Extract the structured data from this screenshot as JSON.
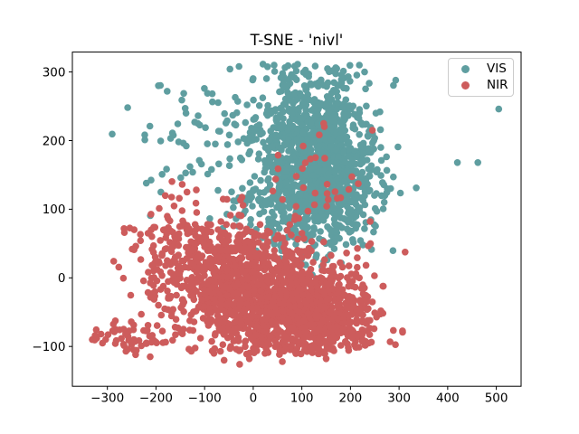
{
  "chart_data": {
    "type": "scatter",
    "title": "T-SNE - 'nivl'",
    "xlabel": "",
    "ylabel": "",
    "xlim": [
      -372,
      551
    ],
    "ylim": [
      -158,
      329
    ],
    "xticks": [
      -300,
      -200,
      -100,
      0,
      100,
      200,
      300,
      400,
      500
    ],
    "xtick_labels": [
      "−300",
      "−200",
      "−100",
      "0",
      "100",
      "200",
      "300",
      "400",
      "500"
    ],
    "yticks": [
      -100,
      0,
      100,
      200,
      300
    ],
    "ytick_labels": [
      "−100",
      "0",
      "100",
      "200",
      "300"
    ],
    "grid": false,
    "background": "#ffffff",
    "axes_color": "#000000",
    "marker_radius_px": 3.8,
    "legend": {
      "position": "upper right",
      "entries": [
        {
          "label": "VIS",
          "color": "#5f9ea0"
        },
        {
          "label": "NIR",
          "color": "#cd5c5c"
        }
      ]
    },
    "series": [
      {
        "name": "VIS",
        "color": "#5f9ea0",
        "seed": 42,
        "clip_x": [
          -368,
          548
        ],
        "clip_y": [
          -40,
          312
        ],
        "clusters": [
          {
            "center": [
              125,
              185
            ],
            "std": [
              62,
              62
            ],
            "n": 950
          },
          {
            "center": [
              170,
              118
            ],
            "std": [
              45,
              38
            ],
            "n": 260
          },
          {
            "center": [
              -15,
              205
            ],
            "std": [
              100,
              52
            ],
            "n": 120
          },
          {
            "center": [
              55,
              95
            ],
            "std": [
              58,
              32
            ],
            "n": 110
          }
        ],
        "outliers": [
          [
            420,
            168
          ],
          [
            462,
            168
          ],
          [
            505,
            246
          ],
          [
            -195,
            280
          ],
          [
            -177,
            272
          ],
          [
            -223,
            201
          ],
          [
            -140,
            247
          ],
          [
            -149,
            146
          ],
          [
            -220,
            138
          ],
          [
            -190,
            125
          ],
          [
            43,
            310
          ],
          [
            229,
            300
          ]
        ]
      },
      {
        "name": "NIR",
        "color": "#cd5c5c",
        "seed": 1337,
        "clip_x": [
          -368,
          548
        ],
        "clip_y": [
          -112,
          240
        ],
        "clusters": [
          {
            "center": [
              35,
              -40
            ],
            "std": [
              85,
              42
            ],
            "n": 950
          },
          {
            "center": [
              -55,
              15
            ],
            "std": [
              70,
              42
            ],
            "n": 420
          },
          {
            "center": [
              120,
              -58
            ],
            "std": [
              58,
              32
            ],
            "n": 420
          },
          {
            "center": [
              -175,
              28
            ],
            "std": [
              45,
              40
            ],
            "n": 110
          },
          {
            "center": [
              -252,
              -85
            ],
            "std": [
              44,
              12
            ],
            "n": 55
          },
          {
            "center": [
              130,
              158
            ],
            "std": [
              52,
              38
            ],
            "n": 28
          },
          {
            "center": [
              205,
              -40
            ],
            "std": [
              25,
              30
            ],
            "n": 70
          }
        ],
        "outliers": [
          [
            -152,
            116
          ],
          [
            -117,
            128
          ],
          [
            245,
            215
          ],
          [
            145,
            225
          ],
          [
            -310,
            -95
          ],
          [
            -331,
            -90
          ],
          [
            -322,
            -88
          ],
          [
            -60,
            -120
          ],
          [
            -28,
            -126
          ],
          [
            -8,
            -118
          ],
          [
            -242,
            -112
          ],
          [
            -212,
            -115
          ],
          [
            150,
            -118
          ],
          [
            60,
            -122
          ],
          [
            245,
            -35
          ],
          [
            240,
            -62
          ],
          [
            -265,
            66
          ],
          [
            -245,
            41
          ]
        ]
      }
    ]
  }
}
